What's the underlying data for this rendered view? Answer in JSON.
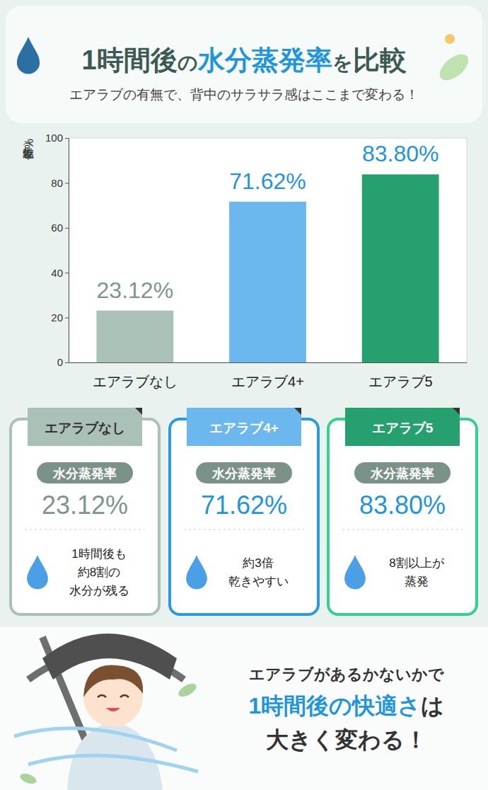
{
  "header": {
    "title_parts": [
      {
        "text": "1時間後",
        "highlight": false
      },
      {
        "text": "の",
        "highlight": false,
        "small": true
      },
      {
        "text": "水分蒸発率",
        "highlight": true
      },
      {
        "text": "を",
        "highlight": false,
        "small": true
      },
      {
        "text": "比較",
        "highlight": false
      }
    ],
    "subtitle": "エアラブの有無で、背中のサラサラ感はここまで変わる！"
  },
  "chart_data": {
    "type": "bar",
    "y_label": "乾燥率（%）",
    "categories": [
      "エアラブなし",
      "エアラブ4+",
      "エアラブ5"
    ],
    "values": [
      23.12,
      71.62,
      83.8
    ],
    "value_labels": [
      "23.12%",
      "71.62%",
      "83.80%"
    ],
    "colors": [
      "#a9c1b6",
      "#6cb8ee",
      "#27a06f"
    ],
    "ylim": [
      0,
      100
    ],
    "yticks": [
      0,
      20,
      40,
      60,
      80,
      100
    ],
    "grid": false,
    "data_labels": true
  },
  "cards": [
    {
      "label": "水分蒸発率",
      "note": [
        "1時間後も",
        "約8割の",
        "水分が残る"
      ]
    },
    {
      "label": "水分蒸発率",
      "note": [
        "約3倍",
        "乾きやすい"
      ]
    },
    {
      "label": "水分蒸発率",
      "note": [
        "8割以上が",
        "蒸発"
      ]
    }
  ],
  "footer": {
    "line_1": "エアラブがあるかないかで",
    "line_2_highlight": "1時間後の快適さ",
    "line_2_rest": "は",
    "line_3": "大きく変わる！"
  }
}
